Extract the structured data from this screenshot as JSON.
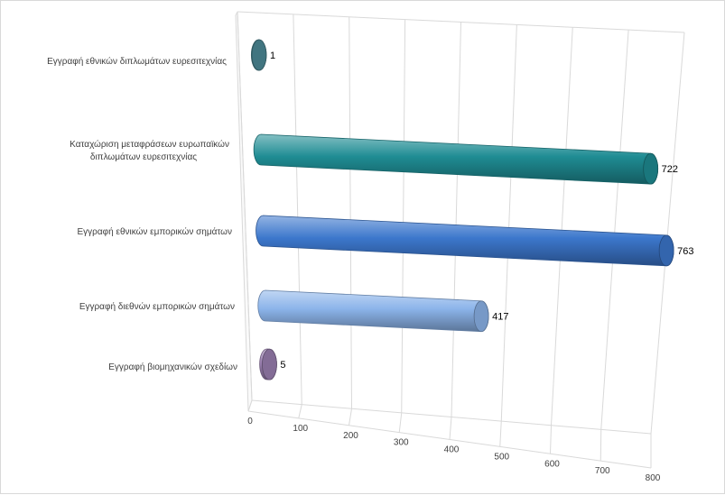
{
  "chart_data": {
    "type": "bar",
    "orientation": "horizontal",
    "style": "3d-cylinder",
    "title": "",
    "xlabel": "",
    "ylabel": "",
    "xlim": [
      0,
      800
    ],
    "ticks": [
      "0",
      "100",
      "200",
      "300",
      "400",
      "500",
      "600",
      "700",
      "800"
    ],
    "grid": true,
    "legend": "none",
    "categories": [
      {
        "lines": [
          "Εγγραφή εθνικών  διπλωμάτων ευρεσιτεχνίας"
        ],
        "value": 1,
        "color": "#4c8a96"
      },
      {
        "lines": [
          "Καταχώριση  μεταφράσεων ευρωπαϊκών",
          "διπλωμάτων ευρεσιτεχνίας"
        ],
        "value": 722,
        "color": "#1f8c93"
      },
      {
        "lines": [
          "Εγγραφή εθνικών  εμπορικών σημάτων"
        ],
        "value": 763,
        "color": "#3c77cc"
      },
      {
        "lines": [
          "Εγγραφή διεθνών  εμπορικών σημάτων"
        ],
        "value": 417,
        "color": "#8cb4ea"
      },
      {
        "lines": [
          "Εγγραφή βιομηχανικών  σχεδίων"
        ],
        "value": 5,
        "color": "#9a7fb0"
      }
    ],
    "data_labels": [
      "1",
      "722",
      "763",
      "417",
      "5"
    ]
  }
}
